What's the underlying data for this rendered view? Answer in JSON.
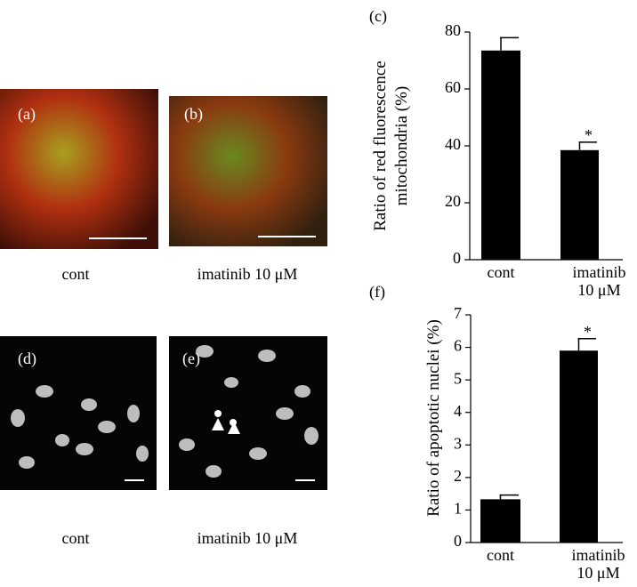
{
  "images": [
    {
      "label": "(a)",
      "caption": "cont"
    },
    {
      "label": "(b)",
      "caption": "imatinib 10 μM"
    },
    {
      "label": "(d)",
      "caption": "cont"
    },
    {
      "label": "(e)",
      "caption": "imatinib 10 μM"
    }
  ],
  "chart_data": [
    {
      "type": "bar",
      "panel_label": "(c)",
      "ylabel": "Ratio of red fluorescence mitochondria (%)",
      "categories": [
        "cont",
        "imatinib 10 μM"
      ],
      "values": [
        73.5,
        38.5
      ],
      "errors": [
        4.5,
        2.8
      ],
      "color": "#000000",
      "ylim": [
        0,
        80
      ],
      "yticks": [
        0,
        20,
        40,
        60,
        80
      ],
      "annotation": "*"
    },
    {
      "type": "bar",
      "panel_label": "(f)",
      "ylabel": "Ratio of apoptotic nuclei (%)",
      "categories": [
        "cont",
        "imatinib 10 μM"
      ],
      "values": [
        1.33,
        5.9
      ],
      "errors": [
        0.13,
        0.37
      ],
      "color": "#000000",
      "ylim": [
        0,
        7
      ],
      "yticks": [
        0,
        1,
        2,
        3,
        4,
        5,
        6,
        7
      ],
      "annotation": "*"
    }
  ]
}
